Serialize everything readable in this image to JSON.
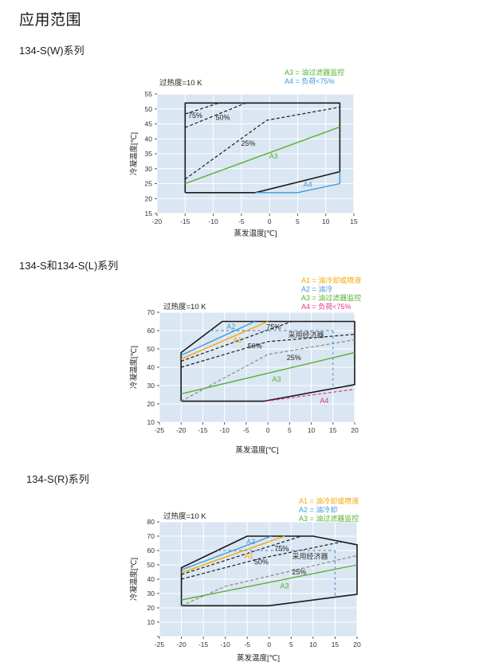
{
  "page": {
    "title": "应用范围",
    "sections": [
      {
        "heading": "134-S(W)系列"
      },
      {
        "heading": "134-S和134-S(L)系列"
      },
      {
        "heading": "134-S(R)系列"
      }
    ]
  },
  "colors": {
    "orange": "#F7A600",
    "blue": "#3D9BD9",
    "green": "#56B02F",
    "pink": "#E6328C",
    "gray": "#888888",
    "economizer_blue": "#6FA0CE",
    "black": "#1A1A1A",
    "plot_bg": "#DAE6F2",
    "grid": "#FFFFFF"
  },
  "chart_data": [
    {
      "type": "line",
      "series_name": "134-S(W)",
      "note": "过热度=10 K",
      "xlabel": "蒸发温度[℃]",
      "ylabel": "冷凝温度[℃]",
      "xlim": [
        -20,
        15
      ],
      "ylim": [
        15,
        55
      ],
      "xticks": [
        -20,
        -15,
        -10,
        -5,
        0,
        5,
        10,
        15
      ],
      "yticks": [
        15,
        20,
        25,
        30,
        35,
        40,
        45,
        50,
        55
      ],
      "yticks_unlabeled": [],
      "legend": [
        {
          "label": "A3 = 油过滤器监控",
          "color": "#56B02F"
        },
        {
          "label": "A4 = 负荷<75%",
          "color": "#3D9BD9"
        }
      ],
      "series": [
        {
          "name": "envelope",
          "color": "#1A1A1A",
          "dash": false,
          "points": [
            [
              -15,
              22
            ],
            [
              -2.5,
              22
            ],
            [
              12.5,
              29
            ],
            [
              12.5,
              52
            ],
            [
              -15,
              52
            ],
            [
              -15,
              22
            ]
          ]
        },
        {
          "name": "a4-boundary",
          "color": "#3D9BD9",
          "dash": false,
          "points": [
            [
              -2.5,
              22
            ],
            [
              5,
              22
            ],
            [
              12.5,
              25
            ],
            [
              12.5,
              29
            ]
          ]
        },
        {
          "name": "a3-boundary",
          "color": "#56B02F",
          "dash": false,
          "points": [
            [
              -15,
              25
            ],
            [
              12.5,
              44
            ]
          ]
        },
        {
          "name": "load-75",
          "color": "#1A1A1A",
          "dash": true,
          "points": [
            [
              -15,
              48.3
            ],
            [
              -9,
              52
            ]
          ]
        },
        {
          "name": "load-50",
          "color": "#1A1A1A",
          "dash": true,
          "points": [
            [
              -15,
              43.8
            ],
            [
              -4.2,
              52
            ]
          ]
        },
        {
          "name": "load-25",
          "color": "#1A1A1A",
          "dash": true,
          "points": [
            [
              -15,
              26.5
            ],
            [
              -0.5,
              46.2
            ],
            [
              12.5,
              50.6
            ]
          ]
        }
      ],
      "annotations": [
        {
          "text": "75%",
          "x": -13.2,
          "y": 47.8,
          "color": "#222222"
        },
        {
          "text": "50%",
          "x": -8.3,
          "y": 47.1,
          "color": "#222222"
        },
        {
          "text": "25%",
          "x": -3.8,
          "y": 38.5,
          "color": "#222222"
        },
        {
          "text": "A3",
          "x": 0.7,
          "y": 34.2,
          "color": "#56B02F"
        },
        {
          "text": "A4",
          "x": 6.8,
          "y": 24.7,
          "color": "#3D9BD9"
        }
      ]
    },
    {
      "type": "line",
      "series_name": "134-S / 134-S(L)",
      "note": "过热度=10 K",
      "xlabel": "蒸发温度[℃]",
      "ylabel": "冷凝温度[℃]",
      "xlim": [
        -25,
        20
      ],
      "ylim": [
        10,
        70
      ],
      "xticks": [
        -25,
        -20,
        -15,
        -10,
        -5,
        0,
        5,
        10,
        15,
        20
      ],
      "yticks": [
        10,
        20,
        30,
        40,
        50,
        60,
        70
      ],
      "yticks_unlabeled": [],
      "legend": [
        {
          "label": "A1 = 油冷却或喷液",
          "color": "#F7A600"
        },
        {
          "label": "A2 = 油冷",
          "color": "#3D9BD9"
        },
        {
          "label": "A3 = 油过滤器监控",
          "color": "#56B02F"
        },
        {
          "label": "A4 = 负荷<75%",
          "color": "#E6328C"
        }
      ],
      "series": [
        {
          "name": "envelope",
          "color": "#1A1A1A",
          "dash": false,
          "points": [
            [
              -20,
              21.5
            ],
            [
              -1,
              21.5
            ],
            [
              20,
              30.5
            ],
            [
              20,
              65
            ],
            [
              -10.5,
              65
            ],
            [
              -20,
              48
            ],
            [
              -20,
              21.5
            ]
          ]
        },
        {
          "name": "a2-boundary",
          "color": "#3D9BD9",
          "dash": false,
          "points": [
            [
              -20,
              46.5
            ],
            [
              -3,
              65
            ]
          ]
        },
        {
          "name": "a1-boundary",
          "color": "#F7A600",
          "dash": false,
          "points": [
            [
              -20,
              44.5
            ],
            [
              0,
              65
            ]
          ]
        },
        {
          "name": "a3-boundary",
          "color": "#56B02F",
          "dash": false,
          "points": [
            [
              -20,
              25.5
            ],
            [
              20,
              48
            ]
          ]
        },
        {
          "name": "load-75",
          "color": "#1A1A1A",
          "dash": true,
          "points": [
            [
              -20,
              43.3
            ],
            [
              5.5,
              65
            ]
          ]
        },
        {
          "name": "load-50",
          "color": "#1A1A1A",
          "dash": true,
          "points": [
            [
              -20,
              40
            ],
            [
              0,
              54
            ],
            [
              20,
              58
            ]
          ]
        },
        {
          "name": "load-25",
          "color": "#888888",
          "dash": true,
          "points": [
            [
              -20,
              21.5
            ],
            [
              0,
              47
            ],
            [
              20,
              55
            ]
          ]
        },
        {
          "name": "a4-load-boundary",
          "color": "#E6328C",
          "dash": true,
          "points": [
            [
              -0.5,
              21.5
            ],
            [
              20,
              28
            ]
          ]
        },
        {
          "name": "economizer-h",
          "color": "#6FA0CE",
          "dash": true,
          "points": [
            [
              -13.3,
              60
            ],
            [
              15,
              60
            ]
          ]
        },
        {
          "name": "economizer-v",
          "color": "#6FA0CE",
          "dash": true,
          "points": [
            [
              15,
              60
            ],
            [
              15,
              28.3
            ]
          ]
        }
      ],
      "annotations": [
        {
          "text": "A2",
          "x": -8.5,
          "y": 62.2,
          "color": "#3D9BD9"
        },
        {
          "text": "A1",
          "x": -7,
          "y": 54.8,
          "color": "#F7A600"
        },
        {
          "text": "75%",
          "x": 1.3,
          "y": 62,
          "color": "#222222"
        },
        {
          "text": "50%",
          "x": -3,
          "y": 51.5,
          "color": "#222222"
        },
        {
          "text": "25%",
          "x": 6,
          "y": 45.2,
          "color": "#222222"
        },
        {
          "text": "采用经济器",
          "x": 8.8,
          "y": 57.6,
          "color": "#333333"
        },
        {
          "text": "A3",
          "x": 2,
          "y": 33.5,
          "color": "#56B02F"
        },
        {
          "text": "A4",
          "x": 13,
          "y": 21.8,
          "color": "#E6328C"
        }
      ]
    },
    {
      "type": "line",
      "series_name": "134-S(R)",
      "note": "过热度=10 K",
      "xlabel": "蒸发温度[℃]",
      "ylabel": "冷凝温度[℃]",
      "xlim": [
        -25,
        20
      ],
      "ylim": [
        0,
        80
      ],
      "xticks": [
        -25,
        -20,
        -15,
        -10,
        -5,
        0,
        5,
        10,
        15,
        20
      ],
      "yticks": [
        0,
        10,
        20,
        30,
        40,
        50,
        60,
        70,
        80
      ],
      "yticks_unlabeled": [
        0
      ],
      "legend": [
        {
          "label": "A1 = 油冷却或喷液",
          "color": "#F7A600"
        },
        {
          "label": "A2 = 油冷却",
          "color": "#3D9BD9"
        },
        {
          "label": "A3 = 油过滤器监控",
          "color": "#56B02F"
        }
      ],
      "series": [
        {
          "name": "envelope",
          "color": "#1A1A1A",
          "dash": false,
          "points": [
            [
              -20,
              21.5
            ],
            [
              0,
              21.5
            ],
            [
              20,
              29.5
            ],
            [
              20,
              64
            ],
            [
              10,
              70
            ],
            [
              -5,
              70
            ],
            [
              -20,
              48
            ],
            [
              -20,
              21.5
            ]
          ]
        },
        {
          "name": "a2-boundary",
          "color": "#3D9BD9",
          "dash": false,
          "points": [
            [
              -20,
              46.5
            ],
            [
              0.5,
              70
            ]
          ]
        },
        {
          "name": "a1-boundary",
          "color": "#F7A600",
          "dash": false,
          "points": [
            [
              -20,
              44.5
            ],
            [
              3.5,
              70
            ]
          ]
        },
        {
          "name": "a3-boundary",
          "color": "#56B02F",
          "dash": false,
          "points": [
            [
              -20,
              25.5
            ],
            [
              20,
              50
            ]
          ]
        },
        {
          "name": "load-75",
          "color": "#1A1A1A",
          "dash": true,
          "points": [
            [
              -20,
              43.3
            ],
            [
              7.3,
              70
            ]
          ]
        },
        {
          "name": "load-50",
          "color": "#1A1A1A",
          "dash": true,
          "points": [
            [
              -20,
              40
            ],
            [
              -2,
              54.5
            ],
            [
              16.5,
              66
            ]
          ]
        },
        {
          "name": "load-25",
          "color": "#888888",
          "dash": true,
          "points": [
            [
              -20,
              21.5
            ],
            [
              -10,
              35
            ],
            [
              20,
              56.5
            ]
          ]
        },
        {
          "name": "economizer-h",
          "color": "#6FA0CE",
          "dash": true,
          "points": [
            [
              -11.7,
              60
            ],
            [
              15,
              60
            ]
          ]
        },
        {
          "name": "economizer-v",
          "color": "#6FA0CE",
          "dash": true,
          "points": [
            [
              15,
              60
            ],
            [
              15,
              27.5
            ]
          ]
        }
      ],
      "annotations": [
        {
          "text": "A2",
          "x": -4.2,
          "y": 66,
          "color": "#3D9BD9"
        },
        {
          "text": "A1",
          "x": -4.6,
          "y": 56.5,
          "color": "#F7A600"
        },
        {
          "text": "75%",
          "x": 2.8,
          "y": 61.3,
          "color": "#222222"
        },
        {
          "text": "50%",
          "x": -1.8,
          "y": 52,
          "color": "#222222"
        },
        {
          "text": "25%",
          "x": 6.8,
          "y": 45,
          "color": "#222222"
        },
        {
          "text": "采用经济器",
          "x": 9.3,
          "y": 55.8,
          "color": "#333333"
        },
        {
          "text": "A3",
          "x": 3.5,
          "y": 35.3,
          "color": "#56B02F"
        }
      ]
    }
  ]
}
